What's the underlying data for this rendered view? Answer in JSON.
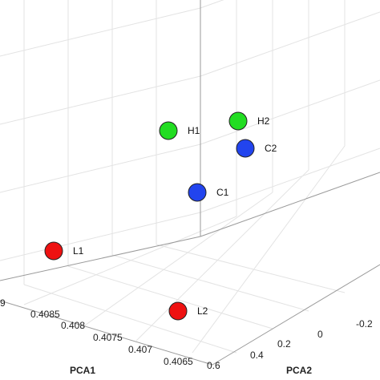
{
  "chart_data": {
    "type": "scatter",
    "projection": "3d",
    "title": "",
    "axes": {
      "x": {
        "label": "PCA1",
        "ticks": [
          "0.4065",
          "0.407",
          "0.4075",
          "0.408",
          "0.4085",
          "9"
        ]
      },
      "y": {
        "label": "PCA2",
        "ticks": [
          "0.6",
          "0.4",
          "0.2",
          "0",
          "-0.2"
        ]
      },
      "z": {
        "label": "",
        "ticks": []
      }
    },
    "grid": true,
    "points": [
      {
        "label": "H1",
        "color": "#22dd22"
      },
      {
        "label": "H2",
        "color": "#22dd22"
      },
      {
        "label": "C2",
        "color": "#2244ee"
      },
      {
        "label": "C1",
        "color": "#2244ee"
      },
      {
        "label": "L1",
        "color": "#ee1111"
      },
      {
        "label": "L2",
        "color": "#ee1111"
      }
    ]
  }
}
